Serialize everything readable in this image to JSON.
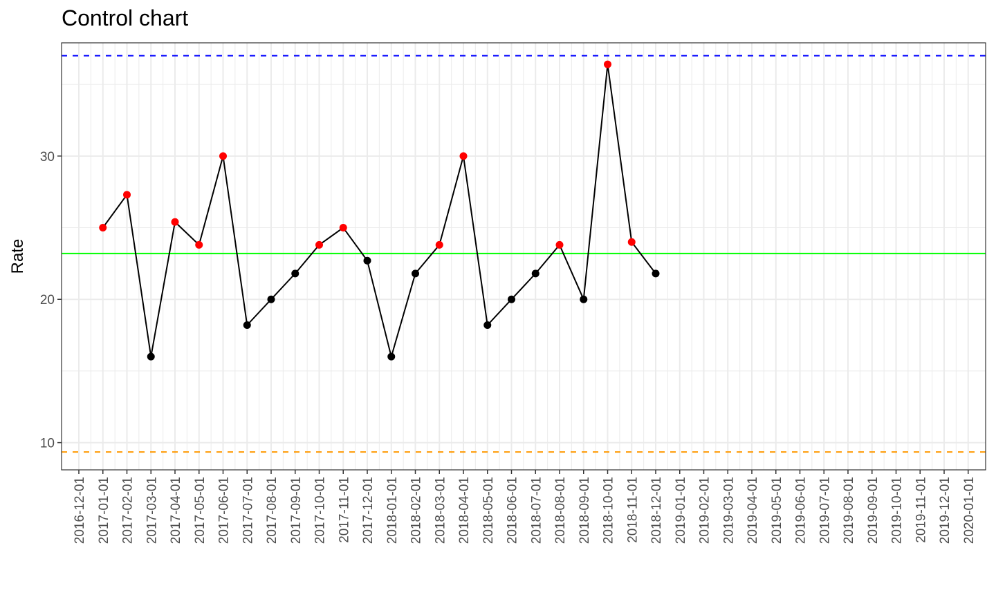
{
  "chart_data": {
    "type": "line",
    "title": "Control chart",
    "xlabel": "",
    "ylabel": "Rate",
    "x_ticks": [
      "2016-12-01",
      "2017-01-01",
      "2017-02-01",
      "2017-03-01",
      "2017-04-01",
      "2017-05-01",
      "2017-06-01",
      "2017-07-01",
      "2017-08-01",
      "2017-09-01",
      "2017-10-01",
      "2017-11-01",
      "2017-12-01",
      "2018-01-01",
      "2018-02-01",
      "2018-03-01",
      "2018-04-01",
      "2018-05-01",
      "2018-06-01",
      "2018-07-01",
      "2018-08-01",
      "2018-09-01",
      "2018-10-01",
      "2018-11-01",
      "2018-12-01",
      "2019-01-01",
      "2019-02-01",
      "2019-03-01",
      "2019-04-01",
      "2019-05-01",
      "2019-06-01",
      "2019-07-01",
      "2019-08-01",
      "2019-09-01",
      "2019-10-01",
      "2019-11-01",
      "2019-12-01",
      "2020-01-01"
    ],
    "y_ticks": [
      10,
      20,
      30
    ],
    "ylim": [
      8.1,
      37.9
    ],
    "grid": true,
    "series": [
      {
        "values": [
          {
            "x": "2017-01-01",
            "y": 25.0,
            "color": "#ff0000"
          },
          {
            "x": "2017-02-01",
            "y": 27.3,
            "color": "#ff0000"
          },
          {
            "x": "2017-03-01",
            "y": 16.0,
            "color": "#000000"
          },
          {
            "x": "2017-04-01",
            "y": 25.4,
            "color": "#ff0000"
          },
          {
            "x": "2017-05-01",
            "y": 23.8,
            "color": "#ff0000"
          },
          {
            "x": "2017-06-01",
            "y": 30.0,
            "color": "#ff0000"
          },
          {
            "x": "2017-07-01",
            "y": 18.2,
            "color": "#000000"
          },
          {
            "x": "2017-08-01",
            "y": 20.0,
            "color": "#000000"
          },
          {
            "x": "2017-09-01",
            "y": 21.8,
            "color": "#000000"
          },
          {
            "x": "2017-10-01",
            "y": 23.8,
            "color": "#ff0000"
          },
          {
            "x": "2017-11-01",
            "y": 25.0,
            "color": "#ff0000"
          },
          {
            "x": "2017-12-01",
            "y": 22.7,
            "color": "#000000"
          },
          {
            "x": "2018-01-01",
            "y": 16.0,
            "color": "#000000"
          },
          {
            "x": "2018-02-01",
            "y": 21.8,
            "color": "#000000"
          },
          {
            "x": "2018-03-01",
            "y": 23.8,
            "color": "#ff0000"
          },
          {
            "x": "2018-04-01",
            "y": 30.0,
            "color": "#ff0000"
          },
          {
            "x": "2018-05-01",
            "y": 18.2,
            "color": "#000000"
          },
          {
            "x": "2018-06-01",
            "y": 20.0,
            "color": "#000000"
          },
          {
            "x": "2018-07-01",
            "y": 21.8,
            "color": "#000000"
          },
          {
            "x": "2018-08-01",
            "y": 23.8,
            "color": "#ff0000"
          },
          {
            "x": "2018-09-01",
            "y": 20.0,
            "color": "#000000"
          },
          {
            "x": "2018-10-01",
            "y": 36.4,
            "color": "#ff0000"
          },
          {
            "x": "2018-11-01",
            "y": 24.0,
            "color": "#ff0000"
          },
          {
            "x": "2018-12-01",
            "y": 21.8,
            "color": "#000000"
          }
        ],
        "line_color": "#000000"
      }
    ],
    "reference_lines": [
      {
        "y": 37.0,
        "color": "#0000ff",
        "style": "dashed"
      },
      {
        "y": 23.2,
        "color": "#00ff00",
        "style": "solid"
      },
      {
        "y": 9.35,
        "color": "#ff9900",
        "style": "dashed"
      }
    ]
  }
}
